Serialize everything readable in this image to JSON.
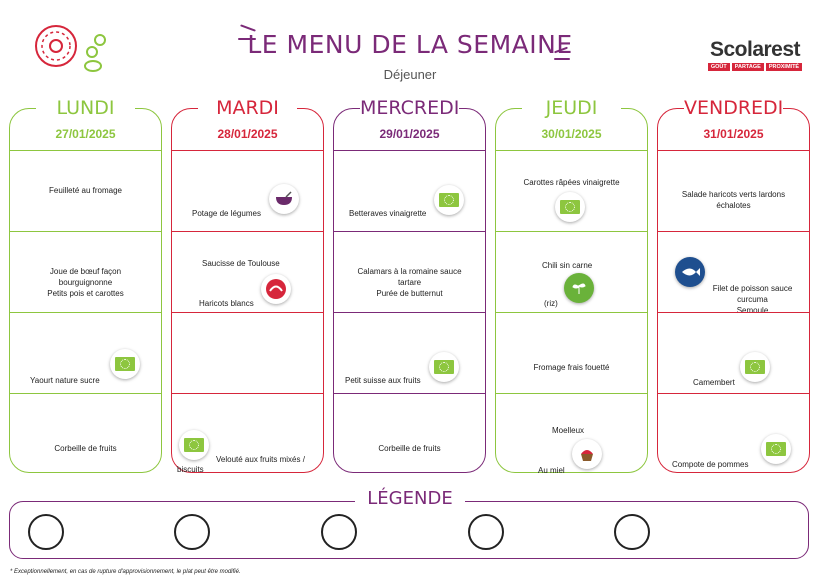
{
  "header": {
    "title": "LE MENU DE LA SEMAINE",
    "subtitle": "Déjeuner",
    "brand_name": "Scolarest",
    "brand_tags": [
      "GOÛT",
      "PARTAGE",
      "PROXIMITÉ"
    ]
  },
  "colors": {
    "green": "#8dc63f",
    "red": "#d6263b",
    "purple": "#7b2a78"
  },
  "days": [
    {
      "name": "LUNDI",
      "date": "27/01/2025",
      "dishes": [
        "Feuilleté au fromage",
        "Joue de bœuf façon bourguignonne\nPetits pois et carottes",
        "Yaourt nature sucre",
        "Corbeille de fruits"
      ]
    },
    {
      "name": "MARDI",
      "date": "28/01/2025",
      "dishes": [
        "Potage de légumes",
        "Saucisse de Toulouse",
        "Haricots blancs",
        "Velouté aux fruits mixés /",
        "biscuits"
      ]
    },
    {
      "name": "MERCREDI",
      "date": "29/01/2025",
      "dishes": [
        "Betteraves vinaigrette",
        "Calamars à la romaine sauce tartare\nPurée de butternut",
        "Petit suisse aux fruits",
        "Corbeille de fruits"
      ]
    },
    {
      "name": "JEUDI",
      "date": "30/01/2025",
      "dishes": [
        "Carottes râpées vinaigrette",
        "Chili sin carne",
        "(riz)",
        "Fromage frais fouetté",
        "Moelleux",
        "Au miel"
      ]
    },
    {
      "name": "VENDREDI",
      "date": "31/01/2025",
      "dishes": [
        "Salade haricots verts lardons échalotes",
        "Filet de poisson sauce curcuma\nSemoule",
        "Camembert",
        "Compote de pommes"
      ]
    }
  ],
  "legend": {
    "title": "LÉGENDE"
  },
  "footer": {
    "note": "* Exceptionnellement, en cas de rupture d'approvisionnement, le plat peut être modifié."
  },
  "icons": [
    "bio-eu-leaf-icon",
    "label-rouge-icon",
    "vegetarian-icon",
    "peche-durable-icon",
    "soup-icon",
    "cake-icon",
    "donut-icon"
  ]
}
